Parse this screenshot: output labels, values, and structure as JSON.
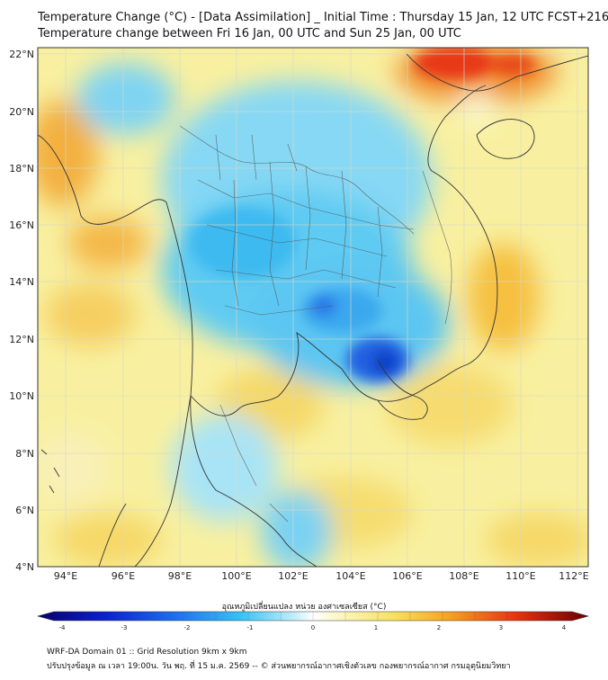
{
  "header": {
    "title_line1": "Temperature Change (°C) - [Data Assimilation] _ Initial Time : Thursday 15 Jan, 12 UTC FCST+216",
    "title_line2": "Temperature change between Fri 16 Jan, 00 UTC and Sun 25 Jan, 00 UTC"
  },
  "axes": {
    "y_ticks": [
      "22°N",
      "20°N",
      "18°N",
      "16°N",
      "14°N",
      "12°N",
      "10°N",
      "8°N",
      "6°N",
      "4°N"
    ],
    "x_ticks": [
      "94°E",
      "96°E",
      "98°E",
      "100°E",
      "102°E",
      "104°E",
      "106°E",
      "108°E",
      "110°E",
      "112°E"
    ]
  },
  "colorbar": {
    "label": "อุณหภูมิเปลี่ยนแปลง หน่วย องศาเซลเซียส (°C)",
    "ticks": [
      "-4",
      "-3",
      "-2",
      "-1",
      "0",
      "1",
      "2",
      "3",
      "4"
    ]
  },
  "footer": {
    "line1": "WRF-DA Domain 01 :: Grid Resolution 9km x 9km",
    "line2": "ปรับปรุงข้อมูล ณ เวลา 19:00น. วัน พฤ. ที่ 15 ม.ค. 2569 -- © ส่วนพยากรณ์อากาศเชิงตัวเลข กองพยากรณ์อากาศ กรมอุตุนิยมวิทยา"
  },
  "colors": {
    "warm_orange": "#f5a020",
    "warm_red": "#e83010",
    "cool_cyan": "#40c0f0",
    "cool_blue": "#1050e0",
    "neutral": "#f5f3c8"
  }
}
